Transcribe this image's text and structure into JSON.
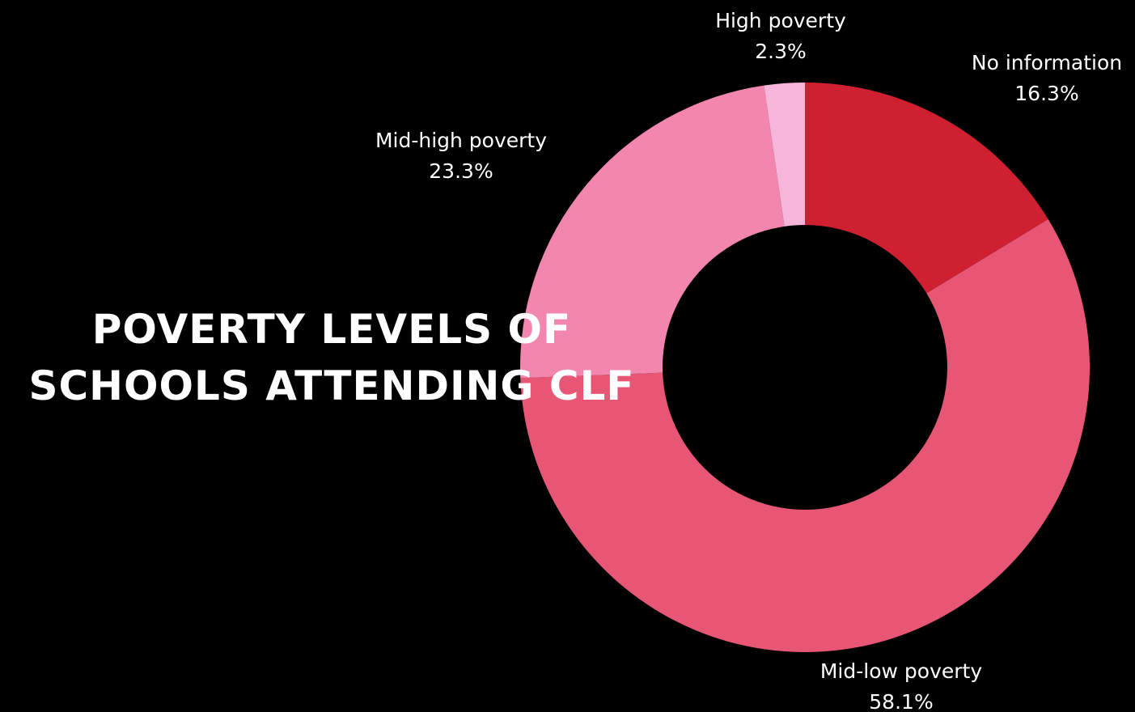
{
  "chart_data": {
    "type": "pie",
    "variant": "donut",
    "title_lines": [
      "POVERTY LEVELS OF",
      "SCHOOLS ATTENDING CLF"
    ],
    "legend": "none",
    "slices": [
      {
        "label": "No information",
        "value": 16.3,
        "value_label": "16.3%",
        "color": "#CE2031"
      },
      {
        "label": "Mid-low poverty",
        "value": 58.1,
        "value_label": "58.1%",
        "color": "#E85676"
      },
      {
        "label": "Mid-high poverty",
        "value": 23.3,
        "value_label": "23.3%",
        "color": "#F386AE"
      },
      {
        "label": "High poverty",
        "value": 2.3,
        "value_label": "2.3%",
        "color": "#F8B5DA"
      }
    ]
  },
  "colors": {
    "background": "#000000",
    "text": "#FFFFFF"
  }
}
